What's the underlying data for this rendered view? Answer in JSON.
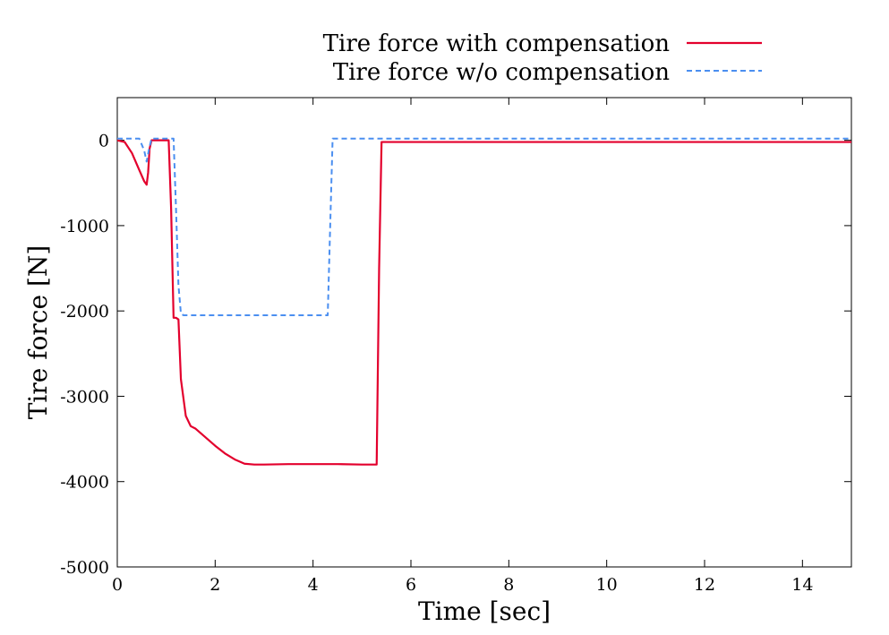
{
  "chart_data": {
    "type": "line",
    "title": "",
    "xlabel": "Time [sec]",
    "ylabel": "Tire force [N]",
    "xlim": [
      0,
      15
    ],
    "ylim": [
      -5000,
      500
    ],
    "x_ticks": [
      0,
      2,
      4,
      6,
      8,
      10,
      12,
      14
    ],
    "x_tick_labels": [
      "0",
      "2",
      "4",
      "6",
      "8",
      "10",
      "12",
      "14"
    ],
    "y_ticks": [
      0,
      -1000,
      -2000,
      -3000,
      -4000,
      -5000
    ],
    "y_tick_labels": [
      "0",
      "-1000",
      "-2000",
      "-3000",
      "-4000",
      "-5000"
    ],
    "grid": false,
    "legend_position": "top-right",
    "series": [
      {
        "name": "Tire force with compensation",
        "color": "#e3002d",
        "dash": "solid",
        "x": [
          0,
          0.15,
          0.3,
          0.45,
          0.55,
          0.6,
          0.63,
          0.66,
          0.7,
          0.8,
          1.0,
          1.05,
          1.1,
          1.15,
          1.2,
          1.25,
          1.3,
          1.4,
          1.5,
          1.6,
          1.8,
          2.0,
          2.2,
          2.4,
          2.6,
          2.8,
          3.0,
          3.5,
          4.0,
          4.5,
          5.0,
          5.3,
          5.35,
          5.4,
          6.0,
          8.0,
          10.0,
          12.0,
          14.0,
          15.0
        ],
        "y": [
          0,
          -20,
          -150,
          -350,
          -480,
          -520,
          -380,
          -100,
          0,
          0,
          0,
          0,
          -800,
          -2080,
          -2080,
          -2100,
          -2800,
          -3230,
          -3350,
          -3380,
          -3480,
          -3580,
          -3670,
          -3740,
          -3790,
          -3800,
          -3800,
          -3795,
          -3795,
          -3795,
          -3800,
          -3800,
          -1500,
          -20,
          -20,
          -20,
          -20,
          -20,
          -20,
          -20
        ]
      },
      {
        "name": "Tire force w/o compensation",
        "color": "#4b8ff0",
        "dash": "dashed",
        "x": [
          0,
          0.45,
          0.55,
          0.6,
          0.65,
          0.7,
          1.1,
          1.15,
          1.2,
          1.25,
          1.3,
          1.35,
          1.4,
          2.0,
          3.0,
          4.0,
          4.3,
          4.4,
          5.0,
          6.0,
          8.0,
          10.0,
          12.0,
          14.0,
          15.0
        ],
        "y": [
          20,
          20,
          -120,
          -250,
          -100,
          20,
          20,
          20,
          -800,
          -1700,
          -2030,
          -2050,
          -2050,
          -2050,
          -2050,
          -2050,
          -2050,
          20,
          20,
          20,
          20,
          20,
          20,
          20,
          20
        ]
      }
    ]
  }
}
